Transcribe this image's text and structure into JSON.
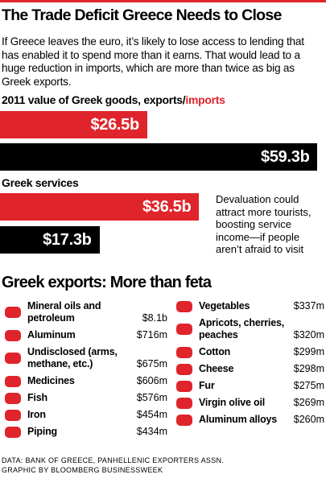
{
  "title": "The Trade Deficit Greece Needs to Close",
  "intro": "If Greece leaves the euro, it’s likely to lose access to lending that has enabled it to spend more than it earns. That would lead to a huge reduction in imports, which are more than twice as big as Greek exports.",
  "chart_data": [
    {
      "type": "bar",
      "title": "2011 value of Greek goods, exports/",
      "title_highlight": "imports",
      "series": [
        {
          "color": "#e0242b",
          "values": [
            26.5
          ],
          "value_labels": [
            "$26.5b"
          ]
        },
        {
          "color": "#000000",
          "values": [
            59.3
          ],
          "value_labels": [
            "$59.3b"
          ]
        }
      ]
    },
    {
      "type": "bar",
      "title": "Greek services",
      "annotation": "Devaluation could attract more tourists, boosting service income—if people aren’t afraid to visit",
      "series": [
        {
          "color": "#e0242b",
          "values": [
            36.5
          ],
          "value_labels": [
            "$36.5b"
          ]
        },
        {
          "color": "#000000",
          "values": [
            17.3
          ],
          "value_labels": [
            "$17.3b"
          ]
        }
      ]
    }
  ],
  "exports": {
    "title": "Greek exports: More than feta",
    "columns": [
      [
        {
          "label": "Mineral oils and petroleum",
          "value": "$8.1b"
        },
        {
          "label": "Aluminum",
          "value": "$716m"
        },
        {
          "label": "Undisclosed (arms, methane, etc.)",
          "value": "$675m"
        },
        {
          "label": "Medicines",
          "value": "$606m"
        },
        {
          "label": "Fish",
          "value": "$576m"
        },
        {
          "label": "Iron",
          "value": "$454m"
        },
        {
          "label": "Piping",
          "value": "$434m"
        }
      ],
      [
        {
          "label": "Vegetables",
          "value": "$337m"
        },
        {
          "label": "Apricots, cherries, peaches",
          "value": "$320m"
        },
        {
          "label": "Cotton",
          "value": "$299m"
        },
        {
          "label": "Cheese",
          "value": "$298m"
        },
        {
          "label": "Fur",
          "value": "$275m"
        },
        {
          "label": "Virgin olive oil",
          "value": "$269m"
        },
        {
          "label": "Aluminum alloys",
          "value": "$260m"
        }
      ]
    ]
  },
  "source": [
    "DATA: BANK OF GREECE, PANHELLENIC EXPORTERS ASSN.",
    "GRAPHIC BY BLOOMBERG BUSINESSWEEK"
  ]
}
